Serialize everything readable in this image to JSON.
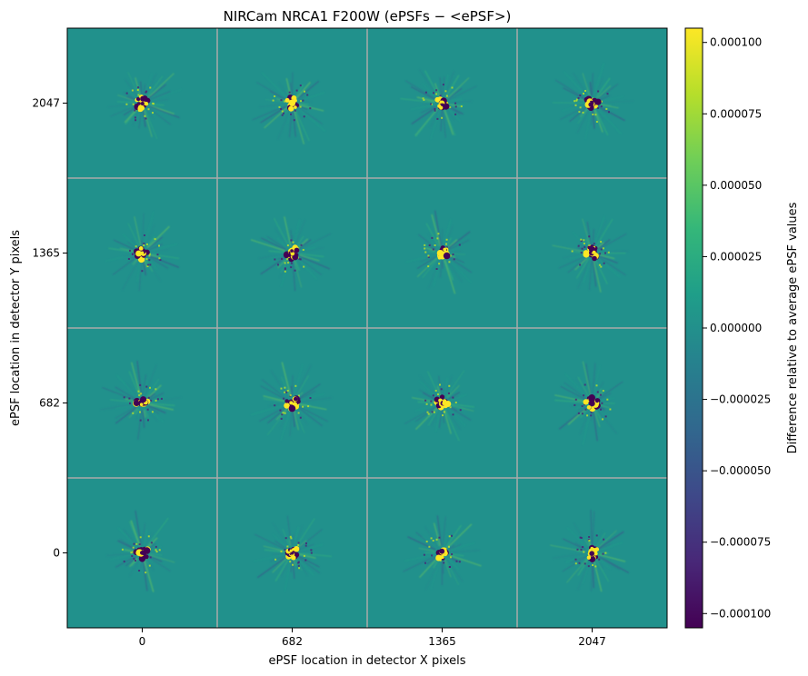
{
  "chart_data": {
    "type": "heatmap",
    "title": "NIRCam NRCA1 F200W (ePSFs − <ePSF>)",
    "xlabel": "ePSF location in detector X pixels",
    "ylabel": "ePSF location in detector Y pixels",
    "x_ticks": [
      "0",
      "682",
      "1365",
      "2047"
    ],
    "y_ticks": [
      "2047",
      "1365",
      "682",
      "0"
    ],
    "grid": true,
    "grid_shape": [
      4,
      4
    ],
    "colormap": "viridis",
    "colorbar": {
      "label": "Difference relative to average ePSF values",
      "range": [
        -0.000105,
        0.000105
      ],
      "ticks": [
        {
          "value": 0.0001,
          "label": "0.000100"
        },
        {
          "value": 7.5e-05,
          "label": "0.000075"
        },
        {
          "value": 5e-05,
          "label": "0.000050"
        },
        {
          "value": 2.5e-05,
          "label": "0.000025"
        },
        {
          "value": 0.0,
          "label": "0.000000"
        },
        {
          "value": -2.5e-05,
          "label": "−0.000025"
        },
        {
          "value": -5e-05,
          "label": "−0.000050"
        },
        {
          "value": -7.5e-05,
          "label": "−0.000075"
        },
        {
          "value": -0.0001,
          "label": "−0.000100"
        }
      ]
    },
    "background_value": 0.0,
    "colors": {
      "background": "#21918c",
      "grid_line": "#aaaaaa",
      "viridis": [
        "#440154",
        "#482878",
        "#3e4989",
        "#31688e",
        "#26828e",
        "#1f9e89",
        "#35b779",
        "#6ece58",
        "#b5de2b",
        "#fde725"
      ]
    }
  }
}
